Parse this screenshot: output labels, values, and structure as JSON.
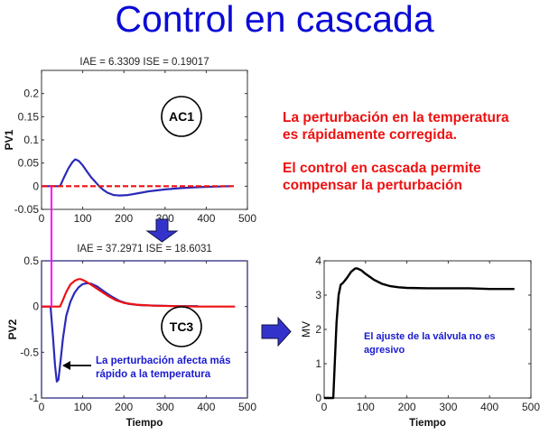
{
  "slide": {
    "title": "Control en cascada",
    "notes": [
      {
        "line1": "La perturbación en la temperatura",
        "line2": "es rápidamente corregida."
      },
      {
        "line1": "El control en cascada permite",
        "line2": "compensar la perturbación"
      }
    ],
    "annotations": {
      "pv2_arrow_text_1": "La perturbación afecta más",
      "pv2_arrow_text_2": "rápido a la temperatura",
      "mv_text_1": "El ajuste de la válvula no es",
      "mv_text_2": "agresivo"
    },
    "colors": {
      "title": "#0a0ad6",
      "note": "#ee1111",
      "annotation": "#1a1ad0",
      "arrow_fill": "#3333cc",
      "marker_line": "#ff00ff",
      "pv_blue": "#2a2ab8",
      "sp_red": "#ee1111",
      "mv_black": "#000000"
    }
  },
  "chart_data": [
    {
      "type": "line",
      "id": "pv1",
      "title": "IAE = 6.3309 ISE = 0.19017",
      "xlabel": "",
      "ylabel": "PV1",
      "xlim": [
        0,
        500
      ],
      "ylim": [
        -0.05,
        0.25
      ],
      "xticks": [
        "0",
        "100",
        "200",
        "300",
        "400",
        "500"
      ],
      "yticks": [
        "-0.05",
        "0",
        "0.05",
        "0.1",
        "0.15",
        "0.2"
      ],
      "badge": "AC1",
      "series": [
        {
          "name": "PV1",
          "color": "#2a2ab8",
          "x": [
            0,
            45,
            55,
            65,
            75,
            82,
            90,
            100,
            110,
            120,
            130,
            140,
            150,
            160,
            175,
            190,
            210,
            230,
            260,
            300,
            340,
            380,
            420,
            460
          ],
          "y": [
            0,
            0,
            0.02,
            0.038,
            0.052,
            0.058,
            0.055,
            0.045,
            0.032,
            0.02,
            0.01,
            0.0,
            -0.008,
            -0.014,
            -0.019,
            -0.02,
            -0.019,
            -0.016,
            -0.011,
            -0.007,
            -0.004,
            -0.002,
            -0.001,
            0
          ]
        },
        {
          "name": "SP",
          "color": "#ee1111",
          "dashed": true,
          "x": [
            0,
            470
          ],
          "y": [
            0,
            0
          ]
        }
      ]
    },
    {
      "type": "line",
      "id": "pv2",
      "title": "IAE = 37.2971 ISE = 18.6031",
      "xlabel": "Tiempo",
      "ylabel": "PV2",
      "xlim": [
        0,
        500
      ],
      "ylim": [
        -1,
        0.5
      ],
      "xticks": [
        "0",
        "100",
        "200",
        "300",
        "400",
        "500"
      ],
      "yticks": [
        "-1",
        "-0.5",
        "0",
        "0.5"
      ],
      "badge": "TC3",
      "series": [
        {
          "name": "PV2",
          "color": "#2a2ab8",
          "x": [
            0,
            22,
            28,
            33,
            37,
            41,
            46,
            52,
            60,
            70,
            80,
            90,
            100,
            110,
            120,
            135,
            150,
            170,
            190,
            210,
            240,
            280,
            330,
            380
          ],
          "y": [
            0,
            0,
            -0.35,
            -0.65,
            -0.82,
            -0.8,
            -0.6,
            -0.35,
            -0.1,
            0.05,
            0.15,
            0.21,
            0.245,
            0.255,
            0.25,
            0.22,
            0.17,
            0.11,
            0.06,
            0.03,
            0.015,
            0.01,
            0.005,
            0.005
          ]
        },
        {
          "name": "Ref (salida AC1)",
          "color": "#ee1111",
          "x": [
            0,
            45,
            50,
            60,
            70,
            80,
            90,
            95,
            105,
            120,
            140,
            160,
            180,
            200,
            230,
            270,
            320,
            380,
            470
          ],
          "y": [
            0,
            0,
            0.05,
            0.16,
            0.24,
            0.28,
            0.3,
            0.3,
            0.28,
            0.24,
            0.18,
            0.12,
            0.07,
            0.04,
            0.02,
            0.01,
            0.005,
            0.0,
            0.0
          ]
        }
      ]
    },
    {
      "type": "line",
      "id": "mv",
      "title": "",
      "xlabel": "Tiempo",
      "ylabel": "MV",
      "xlim": [
        0,
        500
      ],
      "ylim": [
        0,
        4
      ],
      "xticks": [
        "0",
        "100",
        "200",
        "300",
        "400",
        "500"
      ],
      "yticks": [
        "0",
        "1",
        "2",
        "3",
        "4"
      ],
      "series": [
        {
          "name": "MV",
          "color": "#000000",
          "x": [
            0,
            22,
            25,
            30,
            35,
            40,
            45,
            55,
            65,
            75,
            80,
            90,
            100,
            120,
            140,
            160,
            180,
            200,
            250,
            300,
            350,
            400,
            460
          ],
          "y": [
            0,
            0,
            0.8,
            2.2,
            3.0,
            3.3,
            3.35,
            3.5,
            3.68,
            3.78,
            3.78,
            3.72,
            3.62,
            3.45,
            3.33,
            3.26,
            3.23,
            3.21,
            3.2,
            3.2,
            3.2,
            3.18,
            3.18
          ]
        }
      ]
    }
  ]
}
